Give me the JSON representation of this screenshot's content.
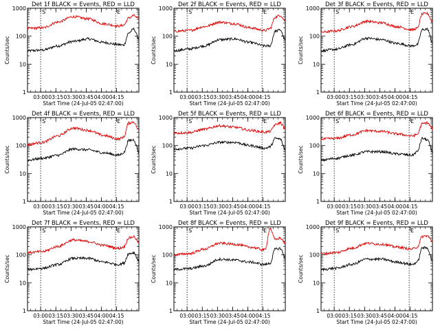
{
  "colors": {
    "events": "#000000",
    "lld": "#e00000",
    "axis": "#000000",
    "marker": "#000000"
  },
  "chart_data": [
    {
      "type": "line",
      "title": "Det 1f BLACK = Events, RED = LLD",
      "xlabel": "Start Time (24-Jul-05 02:47:00)",
      "ylabel": "Counts/sec",
      "xticks": [
        "03:00",
        "03:15",
        "03:30",
        "03:45",
        "04:00",
        "04:15"
      ],
      "yticks": [
        "1",
        "10",
        "100",
        "1000"
      ],
      "ylim": [
        1,
        1000
      ],
      "yscale": "log",
      "markers": [
        "S",
        "E"
      ],
      "series": [
        {
          "name": "Events",
          "x_min": [
            0,
            15,
            30,
            45,
            60,
            75,
            90,
            95,
            100,
            105,
            110,
            115
          ],
          "values": [
            30,
            32,
            45,
            65,
            80,
            60,
            50,
            48,
            130,
            180,
            80,
            50
          ]
        },
        {
          "name": "LLD",
          "x_min": [
            0,
            15,
            30,
            45,
            60,
            75,
            90,
            95,
            100,
            105,
            110,
            115
          ],
          "values": [
            190,
            200,
            320,
            500,
            420,
            280,
            230,
            250,
            450,
            550,
            400,
            230
          ]
        }
      ]
    },
    {
      "type": "line",
      "title": "Det 2f BLACK = Events, RED = LLD",
      "xlabel": "Start Time (24-Jul-05 02:47:00)",
      "ylabel": "Counts/sec",
      "xticks": [
        "03:00",
        "03:15",
        "03:30",
        "03:45",
        "04:00",
        "04:15"
      ],
      "yticks": [
        "1",
        "10",
        "100",
        "1000"
      ],
      "ylim": [
        1,
        1000
      ],
      "yscale": "log",
      "markers": [
        "S",
        "E"
      ],
      "series": [
        {
          "name": "Events",
          "x_min": [
            0,
            15,
            30,
            45,
            60,
            75,
            90,
            95,
            100,
            105,
            110,
            115
          ],
          "values": [
            30,
            35,
            45,
            75,
            80,
            60,
            45,
            45,
            150,
            170,
            70,
            40
          ]
        },
        {
          "name": "LLD",
          "x_min": [
            0,
            15,
            30,
            45,
            60,
            75,
            90,
            95,
            100,
            105,
            110,
            115
          ],
          "values": [
            150,
            160,
            220,
            320,
            280,
            200,
            160,
            190,
            480,
            560,
            350,
            200
          ]
        }
      ]
    },
    {
      "type": "line",
      "title": "Det 3f BLACK = Events, RED = LLD",
      "xlabel": "Start Time (24-Jul-05 02:47:00)",
      "ylabel": "Counts/sec",
      "xticks": [
        "03:00",
        "03:15",
        "03:30",
        "03:45",
        "04:00",
        "04:15"
      ],
      "yticks": [
        "1",
        "10",
        "100",
        "1000"
      ],
      "ylim": [
        1,
        1000
      ],
      "yscale": "log",
      "markers": [
        "S",
        "E"
      ],
      "series": [
        {
          "name": "Events",
          "x_min": [
            0,
            15,
            30,
            45,
            60,
            75,
            90,
            95,
            100,
            105,
            110,
            115
          ],
          "values": [
            30,
            34,
            50,
            85,
            75,
            55,
            45,
            50,
            170,
            180,
            60,
            40
          ]
        },
        {
          "name": "LLD",
          "x_min": [
            0,
            15,
            30,
            45,
            60,
            75,
            90,
            95,
            100,
            105,
            110,
            115
          ],
          "values": [
            140,
            155,
            220,
            340,
            300,
            220,
            170,
            190,
            620,
            650,
            330,
            200
          ]
        }
      ]
    },
    {
      "type": "line",
      "title": "Det 4f BLACK = Events, RED = LLD",
      "xlabel": "Start Time (24-Jul-05 02:47:00)",
      "ylabel": "Counts/sec",
      "xticks": [
        "03:00",
        "03:15",
        "03:30",
        "03:45",
        "04:00",
        "04:15"
      ],
      "yticks": [
        "1",
        "10",
        "100",
        "1000"
      ],
      "ylim": [
        1,
        1000
      ],
      "yscale": "log",
      "markers": [
        "S",
        "E"
      ],
      "series": [
        {
          "name": "Events",
          "x_min": [
            0,
            15,
            30,
            45,
            60,
            75,
            90,
            95,
            100,
            105,
            110,
            115
          ],
          "values": [
            30,
            35,
            45,
            75,
            70,
            55,
            45,
            55,
            150,
            160,
            60,
            40
          ]
        },
        {
          "name": "LLD",
          "x_min": [
            0,
            15,
            30,
            45,
            60,
            75,
            90,
            95,
            100,
            105,
            110,
            115
          ],
          "values": [
            110,
            130,
            220,
            420,
            350,
            230,
            170,
            200,
            640,
            700,
            350,
            200
          ]
        }
      ]
    },
    {
      "type": "line",
      "title": "Det 5f BLACK = Events, RED = LLD",
      "xlabel": "Start Time (24-Jul-05 02:47:00)",
      "ylabel": "Counts/sec",
      "xticks": [
        "03:00",
        "03:15",
        "03:30",
        "03:45",
        "04:00",
        "04:15"
      ],
      "yticks": [
        "1",
        "10",
        "100",
        "1000"
      ],
      "ylim": [
        1,
        1000
      ],
      "yscale": "log",
      "markers": [
        "S",
        "E"
      ],
      "series": [
        {
          "name": "Events",
          "x_min": [
            0,
            15,
            30,
            45,
            60,
            75,
            90,
            95,
            100,
            105,
            110,
            115
          ],
          "values": [
            75,
            80,
            100,
            130,
            130,
            100,
            80,
            90,
            180,
            170,
            70,
            50
          ]
        },
        {
          "name": "LLD",
          "x_min": [
            0,
            15,
            30,
            45,
            60,
            75,
            90,
            95,
            100,
            105,
            110,
            115
          ],
          "values": [
            280,
            290,
            380,
            510,
            450,
            350,
            300,
            320,
            550,
            650,
            400,
            280
          ]
        }
      ]
    },
    {
      "type": "line",
      "title": "Det 6f BLACK = Events, RED = LLD",
      "xlabel": "Start Time (24-Jul-05 02:47:00)",
      "ylabel": "Counts/sec",
      "xticks": [
        "03:00",
        "03:15",
        "03:30",
        "03:45",
        "04:00",
        "04:15"
      ],
      "yticks": [
        "1",
        "10",
        "100",
        "1000"
      ],
      "ylim": [
        1,
        1000
      ],
      "yscale": "log",
      "markers": [
        "S",
        "E"
      ],
      "series": [
        {
          "name": "Events",
          "x_min": [
            0,
            15,
            30,
            45,
            60,
            75,
            90,
            95,
            100,
            105,
            110,
            115
          ],
          "values": [
            30,
            35,
            45,
            60,
            60,
            50,
            45,
            60,
            180,
            160,
            60,
            40
          ]
        },
        {
          "name": "LLD",
          "x_min": [
            0,
            15,
            30,
            45,
            60,
            75,
            90,
            95,
            100,
            105,
            110,
            115
          ],
          "values": [
            170,
            180,
            240,
            340,
            320,
            260,
            220,
            250,
            600,
            650,
            400,
            220
          ]
        }
      ]
    },
    {
      "type": "line",
      "title": "Det 7f BLACK = Events, RED = LLD",
      "xlabel": "Start Time (24-Jul-05 02:47:00)",
      "ylabel": "Counts/sec",
      "xticks": [
        "03:00",
        "03:15",
        "03:30",
        "03:45",
        "04:00",
        "04:15"
      ],
      "yticks": [
        "1",
        "10",
        "100",
        "1000"
      ],
      "ylim": [
        1,
        1000
      ],
      "yscale": "log",
      "markers": [
        "S",
        "E"
      ],
      "series": [
        {
          "name": "Events",
          "x_min": [
            0,
            15,
            30,
            45,
            60,
            75,
            90,
            95,
            100,
            105,
            110,
            115
          ],
          "values": [
            30,
            33,
            45,
            75,
            75,
            55,
            45,
            50,
            110,
            120,
            60,
            40
          ]
        },
        {
          "name": "LLD",
          "x_min": [
            0,
            15,
            30,
            45,
            60,
            75,
            90,
            95,
            100,
            105,
            110,
            115
          ],
          "values": [
            120,
            130,
            200,
            340,
            300,
            220,
            170,
            190,
            400,
            450,
            280,
            170
          ]
        }
      ]
    },
    {
      "type": "line",
      "title": "Det 8f BLACK = Events, RED = LLD",
      "xlabel": "Start Time (24-Jul-05 02:47:00)",
      "ylabel": "Counts/sec",
      "xticks": [
        "03:00",
        "03:15",
        "03:30",
        "03:45",
        "04:00",
        "04:15"
      ],
      "yticks": [
        "1",
        "10",
        "100",
        "1000"
      ],
      "ylim": [
        1,
        1000
      ],
      "yscale": "log",
      "markers": [
        "S",
        "E"
      ],
      "series": [
        {
          "name": "Events",
          "x_min": [
            0,
            15,
            30,
            45,
            60,
            75,
            90,
            95,
            100,
            105,
            110,
            115
          ],
          "values": [
            30,
            32,
            40,
            70,
            65,
            55,
            45,
            50,
            160,
            170,
            80,
            45
          ]
        },
        {
          "name": "LLD",
          "x_min": [
            0,
            15,
            30,
            45,
            60,
            75,
            90,
            95,
            100,
            105,
            110,
            115
          ],
          "values": [
            100,
            110,
            160,
            260,
            240,
            190,
            150,
            900,
            350,
            400,
            260,
            150
          ]
        }
      ]
    },
    {
      "type": "line",
      "title": "Det 9f BLACK = Events, RED = LLD",
      "xlabel": "Start Time (24-Jul-05 02:47:00)",
      "ylabel": "Counts/sec",
      "xticks": [
        "03:00",
        "03:15",
        "03:30",
        "03:45",
        "04:00",
        "04:15"
      ],
      "yticks": [
        "1",
        "10",
        "100",
        "1000"
      ],
      "ylim": [
        1,
        1000
      ],
      "yscale": "log",
      "markers": [
        "S",
        "E"
      ],
      "series": [
        {
          "name": "Events",
          "x_min": [
            0,
            15,
            30,
            45,
            60,
            75,
            90,
            95,
            100,
            105,
            110,
            115
          ],
          "values": [
            30,
            33,
            45,
            70,
            70,
            55,
            45,
            55,
            180,
            175,
            65,
            40
          ]
        },
        {
          "name": "LLD",
          "x_min": [
            0,
            15,
            30,
            45,
            60,
            75,
            90,
            95,
            100,
            105,
            110,
            115
          ],
          "values": [
            110,
            120,
            170,
            260,
            240,
            190,
            160,
            190,
            450,
            480,
            300,
            180
          ]
        }
      ]
    }
  ]
}
